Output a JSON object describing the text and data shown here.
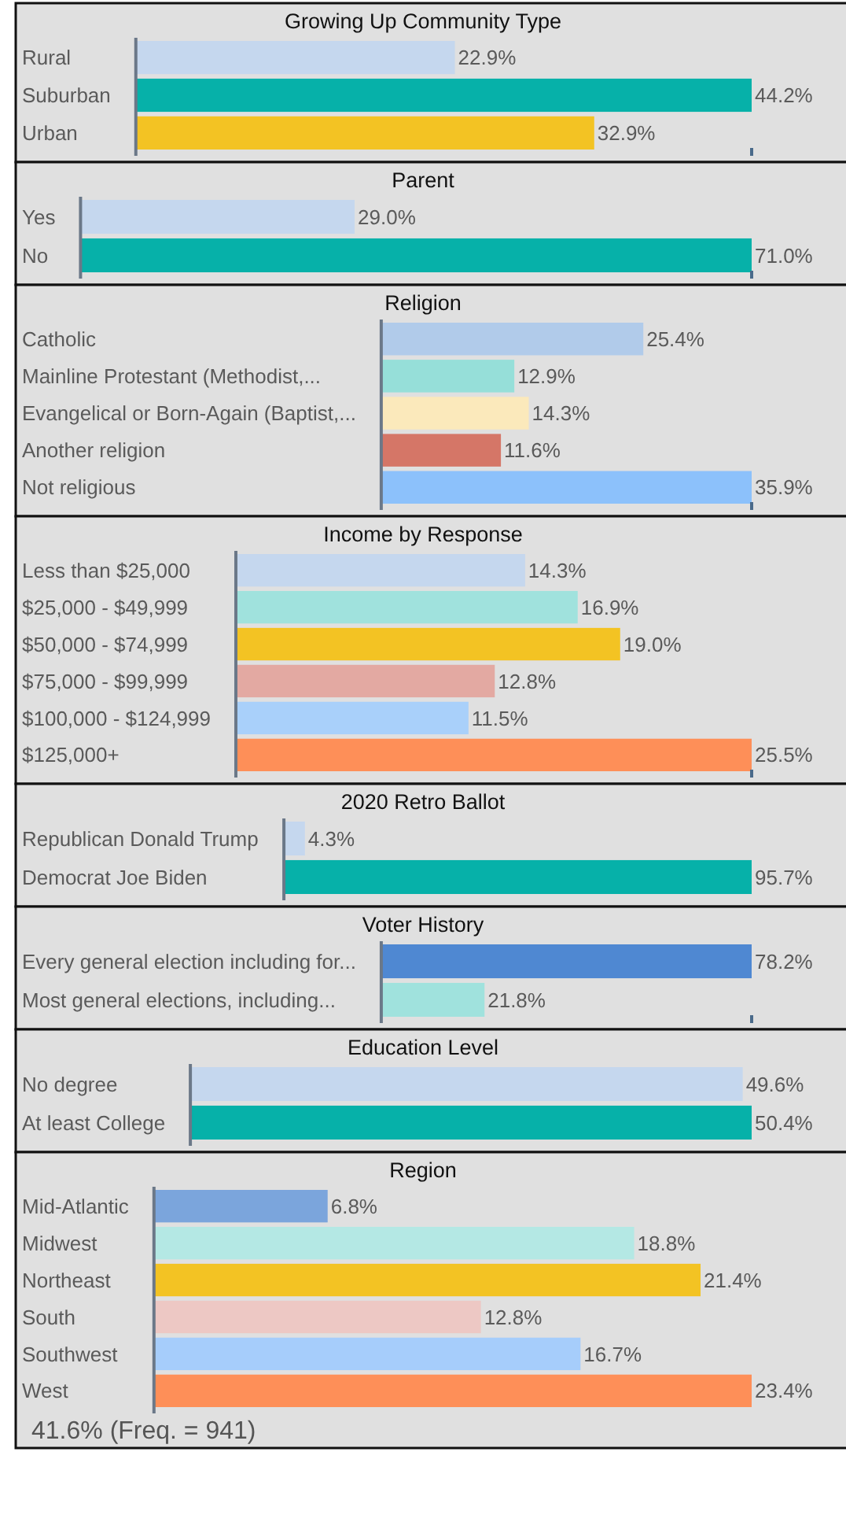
{
  "chart_data": [
    {
      "type": "bar",
      "orientation": "horizontal",
      "title": "Growing Up Community Type",
      "categories": [
        "Rural",
        "Suburban",
        "Urban"
      ],
      "values": [
        22.9,
        44.2,
        32.9
      ],
      "colors": [
        "#c5d7ee",
        "#06b1a9",
        "#f3c323"
      ],
      "value_labels": [
        "22.9%",
        "44.2%",
        "32.9%"
      ],
      "xlim": [
        0,
        44.2
      ],
      "xticks": [
        {
          "value": 44.2,
          "label": null
        }
      ],
      "tick_labels": "y"
    },
    {
      "type": "bar",
      "orientation": "horizontal",
      "title": "Parent",
      "categories": [
        "Yes",
        "No"
      ],
      "values": [
        29.0,
        71.0
      ],
      "colors": [
        "#c5d7ee",
        "#06b1a9"
      ],
      "value_labels": [
        "29.0%",
        "71.0%"
      ],
      "xlim": [
        0,
        71
      ],
      "xticks": [
        {
          "value": 71,
          "label": null
        }
      ],
      "tick_labels": "y"
    },
    {
      "type": "bar",
      "orientation": "horizontal",
      "title": "Religion",
      "categories": [
        "Catholic",
        "Mainline Protestant (Methodist,...",
        "Evangelical or Born-Again (Baptist,...",
        "Another religion",
        "Not religious"
      ],
      "values": [
        25.4,
        12.9,
        14.3,
        11.6,
        35.9
      ],
      "colors": [
        "#b1cbea",
        "#96dfd9",
        "#fbe9bb",
        "#d57667",
        "#8cc1fb"
      ],
      "value_labels": [
        "25.4%",
        "12.9%",
        "14.3%",
        "11.6%",
        "35.9%"
      ],
      "xlim": [
        0,
        35.9
      ],
      "xticks": [
        {
          "value": 35.9,
          "label": null
        }
      ],
      "tick_labels": "y"
    },
    {
      "type": "bar",
      "orientation": "horizontal",
      "title": "Income by Response",
      "categories": [
        "Less than $25,000",
        "$25,000 - $49,999",
        "$50,000 - $74,999",
        "$75,000 - $99,999",
        "$100,000 - $124,999",
        "$125,000+"
      ],
      "values": [
        14.3,
        16.9,
        19.0,
        12.8,
        11.5,
        25.5
      ],
      "colors": [
        "#c5d7ee",
        "#a0e2dd",
        "#f3c323",
        "#e3a9a2",
        "#a9d0fa",
        "#fe8f58"
      ],
      "value_labels": [
        "14.3%",
        "16.9%",
        "19.0%",
        "12.8%",
        "11.5%",
        "25.5%"
      ],
      "xlim": [
        0,
        25.5
      ],
      "xticks": [
        {
          "value": 25.5,
          "label": null
        }
      ],
      "tick_labels": "y"
    },
    {
      "type": "bar",
      "orientation": "horizontal",
      "title": "2020 Retro Ballot",
      "categories": [
        "Republican Donald Trump",
        "Democrat Joe Biden"
      ],
      "values": [
        4.3,
        95.7
      ],
      "colors": [
        "#c5d7ee",
        "#06b1a9"
      ],
      "value_labels": [
        "4.3%",
        "95.7%"
      ],
      "tick_labels": "y"
    },
    {
      "type": "bar",
      "orientation": "horizontal",
      "title": "Voter History",
      "categories": [
        "Every general election including for...",
        "Most general elections, including..."
      ],
      "values": [
        78.2,
        21.8
      ],
      "colors": [
        "#4f88d2",
        "#a0e2dd"
      ],
      "value_labels": [
        "78.2%",
        "21.8%"
      ],
      "xlim": [
        0,
        78.2
      ],
      "xticks": [
        {
          "value": 78.2,
          "label": null
        }
      ],
      "tick_labels": "y"
    },
    {
      "type": "bar",
      "orientation": "horizontal",
      "title": "Education Level",
      "categories": [
        "No degree",
        "At least College"
      ],
      "values": [
        49.6,
        50.4
      ],
      "colors": [
        "#c5d7ee",
        "#06b1a9"
      ],
      "value_labels": [
        "49.6%",
        "50.4%"
      ],
      "tick_labels": "y"
    },
    {
      "type": "bar",
      "orientation": "horizontal",
      "title": "Region",
      "categories": [
        "Mid-Atlantic",
        "Midwest",
        "Northeast",
        "South",
        "Southwest",
        "West"
      ],
      "values": [
        6.8,
        18.8,
        21.4,
        12.8,
        16.7,
        23.4
      ],
      "colors": [
        "#7ba5dc",
        "#b4e8e4",
        "#f3c323",
        "#edc8c4",
        "#a6cdfb",
        "#fe8f58"
      ],
      "value_labels": [
        "6.8%",
        "18.8%",
        "21.4%",
        "12.8%",
        "16.7%",
        "23.4%"
      ],
      "tick_labels": "y",
      "annotations": [
        "41.6% (Freq. = 941)"
      ]
    }
  ]
}
